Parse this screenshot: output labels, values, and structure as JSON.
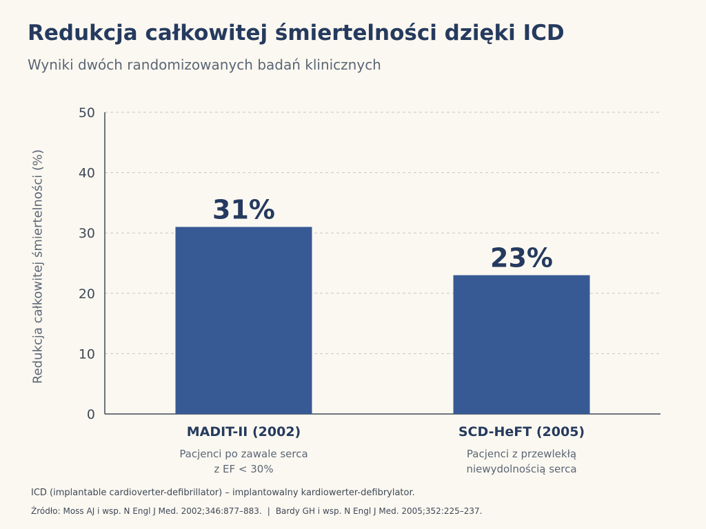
{
  "header": {
    "title": "Redukcja całkowitej śmiertelności dzięki ICD",
    "subtitle": "Wyniki dwóch randomizowanych badań klinicznych"
  },
  "chart_data": {
    "type": "bar",
    "title": "Redukcja całkowitej śmiertelności dzięki ICD",
    "subtitle": "Wyniki dwóch randomizowanych badań klinicznych",
    "xlabel": "",
    "ylabel": "Redukcja całkowitej śmiertelności (%)",
    "ylim": [
      0,
      50
    ],
    "yticks": [
      0,
      10,
      20,
      30,
      40,
      50
    ],
    "grid": true,
    "categories": [
      "MADIT-II (2002)",
      "SCD-HeFT (2005)"
    ],
    "category_descriptions": [
      [
        "Pacjenci po zawale serca",
        "z EF < 30%"
      ],
      [
        "Pacjenci z przewlekłą",
        "niewydolnością serca"
      ]
    ],
    "values": [
      31,
      23
    ],
    "data_labels": [
      "31%",
      "23%"
    ],
    "bar_color": "#375a95"
  },
  "footer": {
    "note": "ICD (implantable cardioverter-defibrillator) – implantowalny kardiowerter-defibrylator.",
    "source_prefix": "Źródło:",
    "source_1": "Moss AJ i wsp. N Engl J Med. 2002;346:877–883.",
    "separator": "|",
    "source_2": "Bardy GH i wsp. N Engl J Med. 2005;352:225–237."
  }
}
